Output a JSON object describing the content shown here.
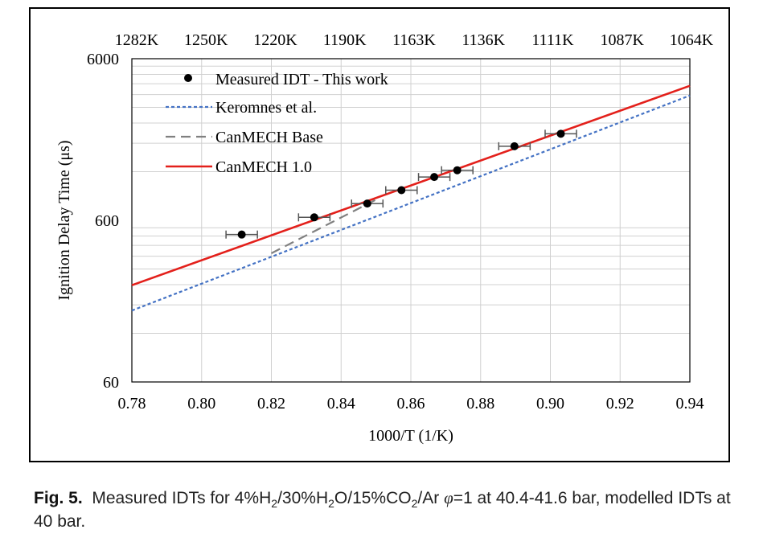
{
  "chart_data": {
    "type": "scatter",
    "xlabel": "1000/T (1/K)",
    "ylabel": "Ignition Delay Time (μs)",
    "xlim": [
      0.78,
      0.94
    ],
    "ylim": [
      60,
      6000
    ],
    "yscale": "log",
    "x_ticks": [
      "0.78",
      "0.80",
      "0.82",
      "0.84",
      "0.86",
      "0.88",
      "0.90",
      "0.92",
      "0.94"
    ],
    "y_ticks": [
      "60",
      "600",
      "6000"
    ],
    "top_axis_labels": [
      "1282K",
      "1250K",
      "1220K",
      "1190K",
      "1163K",
      "1136K",
      "1111K",
      "1087K",
      "1064K"
    ],
    "grid": "vertical and horizontal minor lines",
    "legend_position": "top-left",
    "series": [
      {
        "name": "Measured IDT  - This work",
        "style": "points",
        "color": "#000000",
        "points": [
          {
            "x": 0.8115,
            "y": 490,
            "xerr": 0.0045
          },
          {
            "x": 0.8323,
            "y": 626,
            "xerr": 0.0045
          },
          {
            "x": 0.8475,
            "y": 762,
            "xerr": 0.0045
          },
          {
            "x": 0.8573,
            "y": 922,
            "xerr": 0.0045
          },
          {
            "x": 0.8667,
            "y": 1112,
            "xerr": 0.0045
          },
          {
            "x": 0.8733,
            "y": 1225,
            "xerr": 0.0045
          },
          {
            "x": 0.8897,
            "y": 1724,
            "xerr": 0.0045
          },
          {
            "x": 0.903,
            "y": 2060,
            "xerr": 0.0045
          }
        ]
      },
      {
        "name": "Keromnes et al.",
        "style": "dotted",
        "color": "#4472c4",
        "points": [
          {
            "x": 0.78,
            "y": 166
          },
          {
            "x": 0.94,
            "y": 3550
          }
        ]
      },
      {
        "name": "CanMECH Base",
        "style": "dashed",
        "color": "#808080",
        "points": [
          {
            "x": 0.82,
            "y": 375
          },
          {
            "x": 0.85,
            "y": 805
          }
        ]
      },
      {
        "name": "CanMECH 1.0",
        "style": "solid",
        "color": "#e3201b",
        "points": [
          {
            "x": 0.78,
            "y": 238
          },
          {
            "x": 0.94,
            "y": 4080
          }
        ]
      }
    ]
  },
  "caption": {
    "label": "Fig. 5.",
    "pre": "Measured IDTs for 4%H",
    "s1": "2",
    "t2": "/30%H",
    "s2": "2",
    "t3": "O/15%CO",
    "s3": "2",
    "t4": "/Ar ",
    "phi": "φ",
    "t5": "=1 at 40.4-41.6 bar, modelled IDTs at 40 bar."
  }
}
